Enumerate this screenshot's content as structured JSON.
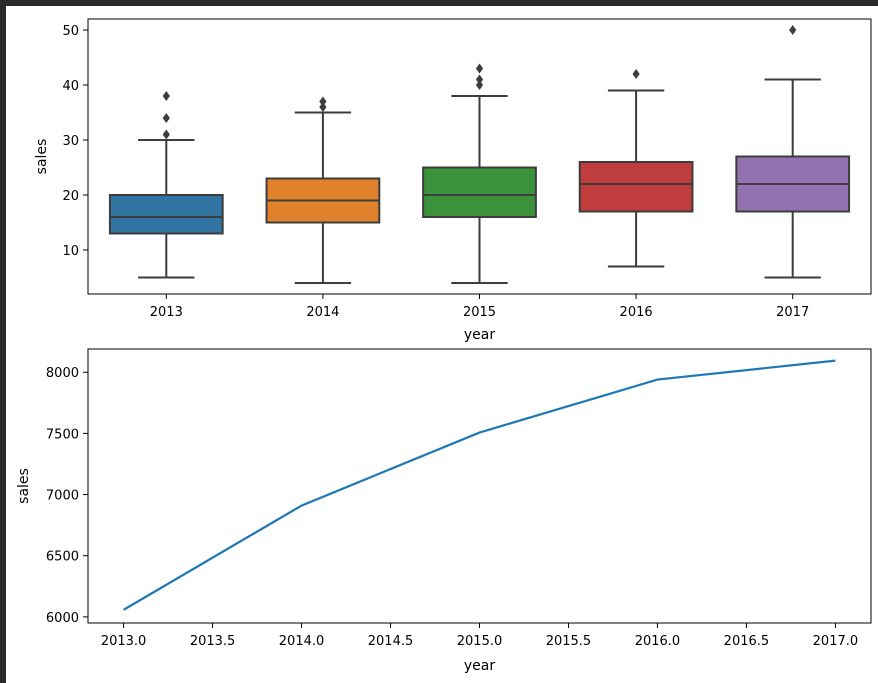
{
  "chart_data": [
    {
      "type": "box",
      "xlabel": "year",
      "ylabel": "sales",
      "categories": [
        "2013",
        "2014",
        "2015",
        "2016",
        "2017"
      ],
      "ylim": [
        2,
        52
      ],
      "yticks": [
        10,
        20,
        30,
        40,
        50
      ],
      "grid": false,
      "boxes": [
        {
          "category": "2013",
          "whisker_low": 5,
          "q1": 13,
          "median": 16,
          "q3": 20,
          "whisker_high": 30,
          "outliers": [
            31,
            34,
            38
          ],
          "color": "#3274a1"
        },
        {
          "category": "2014",
          "whisker_low": 4,
          "q1": 15,
          "median": 19,
          "q3": 23,
          "whisker_high": 35,
          "outliers": [
            36,
            37
          ],
          "color": "#e1812c"
        },
        {
          "category": "2015",
          "whisker_low": 4,
          "q1": 16,
          "median": 20,
          "q3": 25,
          "whisker_high": 38,
          "outliers": [
            40,
            41,
            43
          ],
          "color": "#3a923a"
        },
        {
          "category": "2016",
          "whisker_low": 7,
          "q1": 17,
          "median": 22,
          "q3": 26,
          "whisker_high": 39,
          "outliers": [
            42
          ],
          "color": "#c03d3e"
        },
        {
          "category": "2017",
          "whisker_low": 5,
          "q1": 17,
          "median": 22,
          "q3": 27,
          "whisker_high": 41,
          "outliers": [
            50
          ],
          "color": "#9372b2"
        }
      ]
    },
    {
      "type": "line",
      "xlabel": "year",
      "ylabel": "sales",
      "x": [
        2013,
        2014,
        2015,
        2016,
        2017
      ],
      "y": [
        6058,
        6910,
        7507,
        7940,
        8095
      ],
      "xlim": [
        2012.8,
        2017.2
      ],
      "ylim": [
        5950,
        8190
      ],
      "xticks": [
        "2013.0",
        "2013.5",
        "2014.0",
        "2014.5",
        "2015.0",
        "2015.5",
        "2016.0",
        "2016.5",
        "2017.0"
      ],
      "yticks": [
        6000,
        6500,
        7000,
        7500,
        8000
      ],
      "line_color": "#1f77b4",
      "grid": false
    }
  ]
}
